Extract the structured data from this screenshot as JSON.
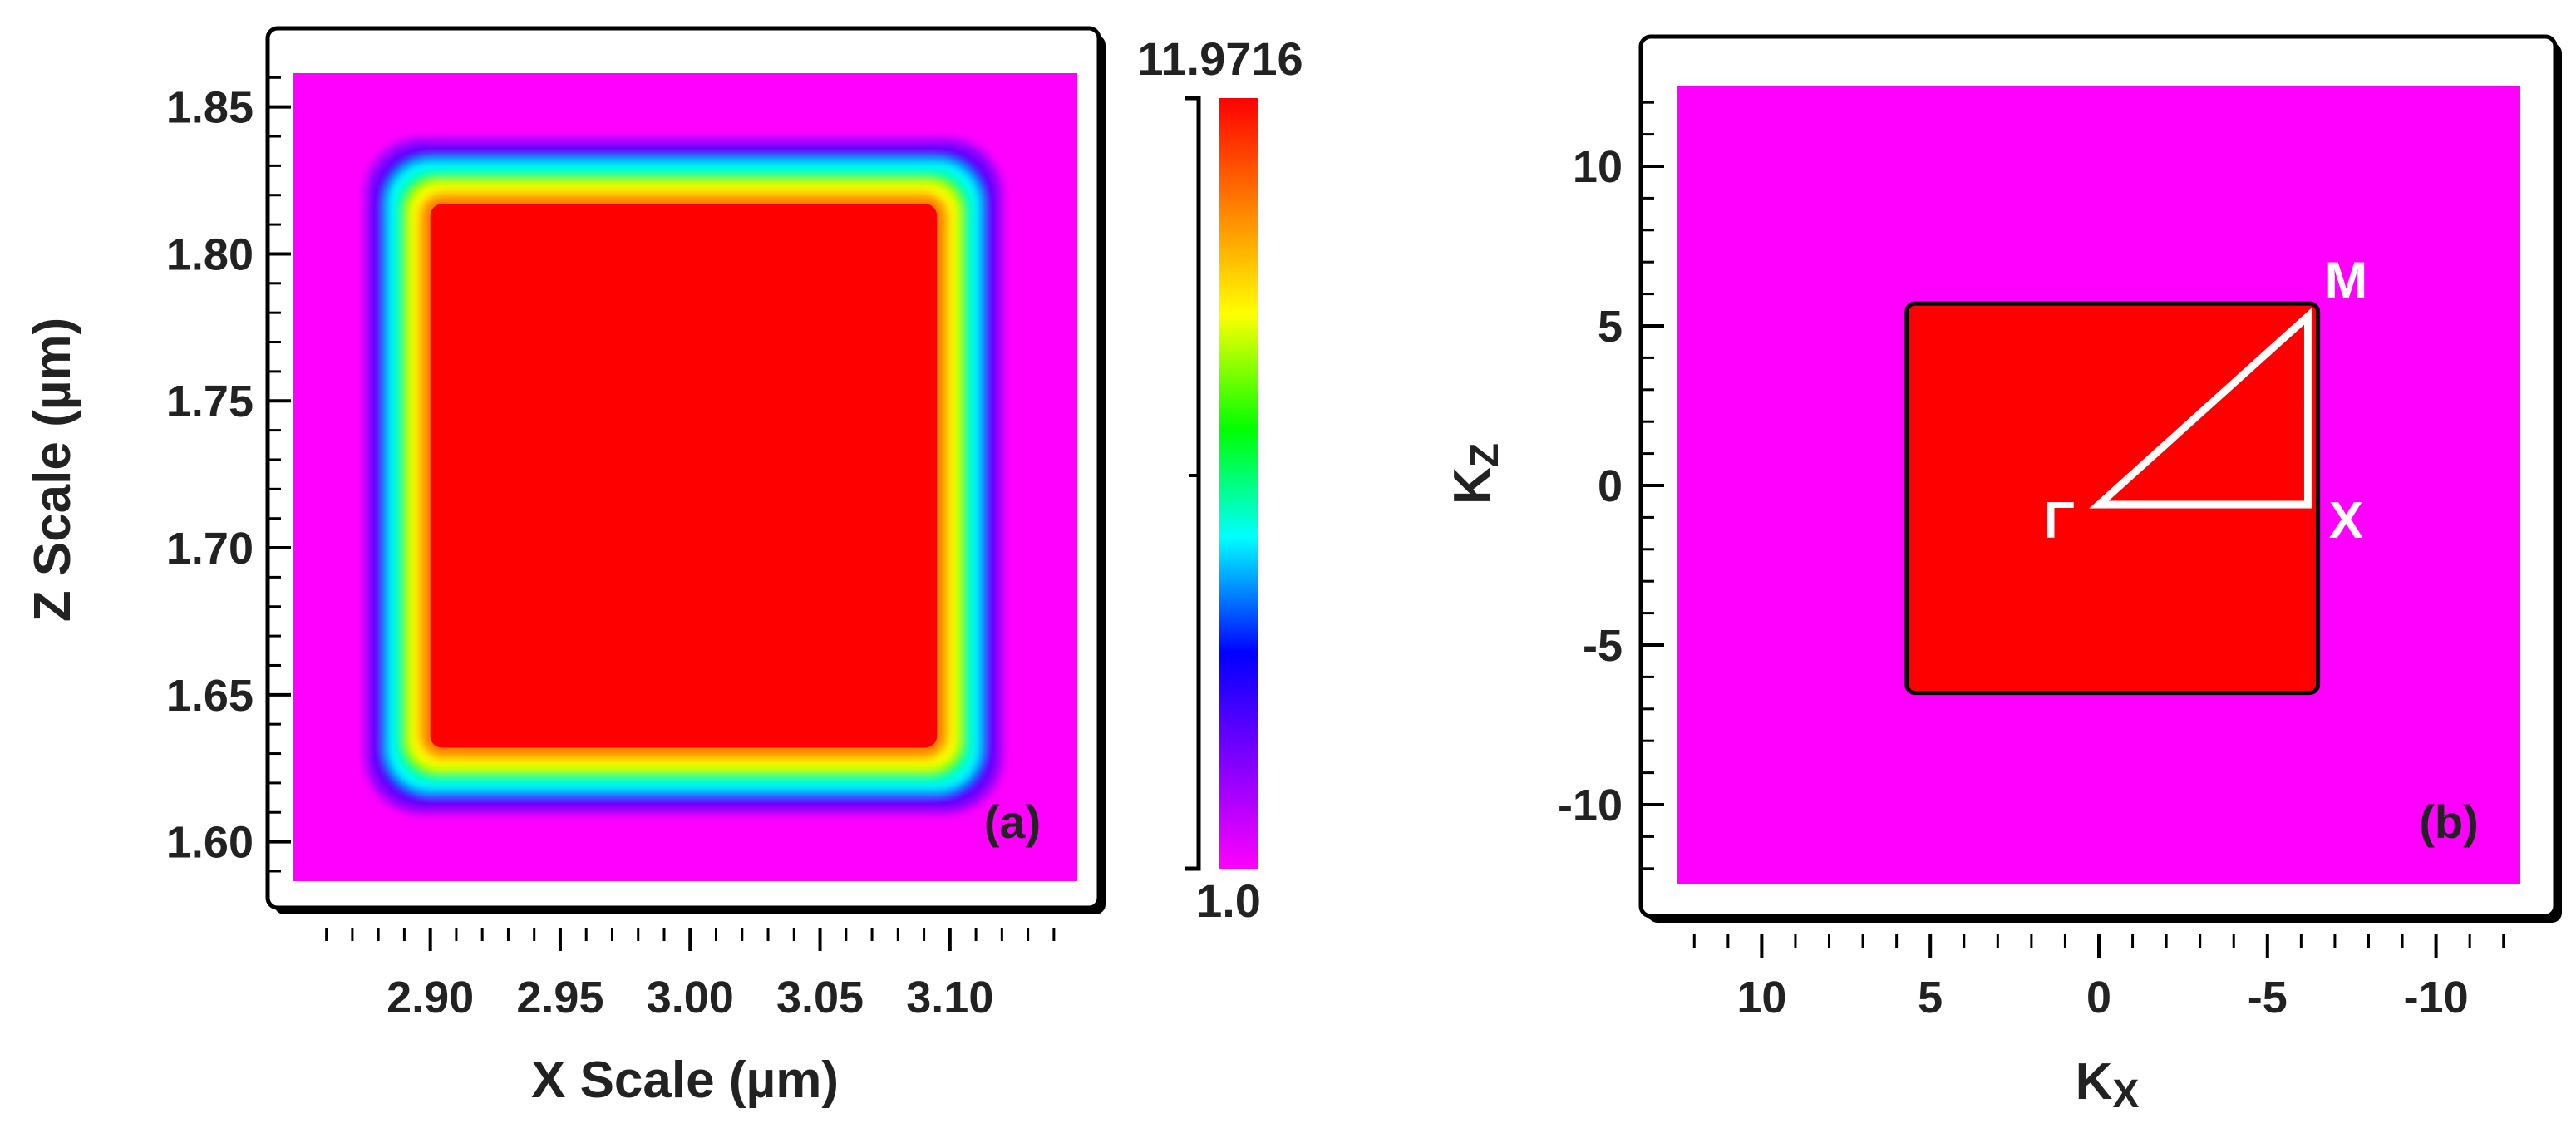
{
  "colors": {
    "colormap": [
      "#ff00ff",
      "#8000ff",
      "#0000ff",
      "#00ffff",
      "#00ff00",
      "#ffff00",
      "#ff7f00",
      "#ff0000"
    ],
    "magenta": "#ff00ff",
    "red": "#ff0000",
    "path": "#ffffff",
    "frame": "#000000"
  },
  "chart_data": [
    {
      "type": "heatmap",
      "panel_label": "(a)",
      "title": "",
      "xlabel": "X Scale (µm)",
      "ylabel": "Z Scale (µm)",
      "xlim": [
        2.847,
        3.149
      ],
      "ylim": [
        1.5866,
        1.8615
      ],
      "x_ticks": [
        2.9,
        2.95,
        3.0,
        3.05,
        3.1
      ],
      "x_tick_labels": [
        "2.90",
        "2.95",
        "3.00",
        "3.05",
        "3.10"
      ],
      "y_ticks": [
        1.6,
        1.65,
        1.7,
        1.75,
        1.8,
        1.85
      ],
      "y_tick_labels": [
        "1.60",
        "1.65",
        "1.70",
        "1.75",
        "1.80",
        "1.85"
      ],
      "background_value": 1.0,
      "rod": {
        "value": 11.9716,
        "x_range": [
          2.9,
          3.095
        ],
        "z_range": [
          1.632,
          1.817
        ]
      },
      "colorbar": {
        "min": 1.0,
        "max": 11.9716,
        "min_label": "1.0",
        "max_label": "11.9716"
      }
    },
    {
      "type": "heatmap",
      "panel_label": "(b)",
      "title": "",
      "xlabel": "K",
      "xlabel_sub": "X",
      "ylabel": "K",
      "ylabel_sub": "Z",
      "xlim": [
        12.5,
        -12.5
      ],
      "ylim": [
        -12.5,
        12.5
      ],
      "x_ticks": [
        10,
        5,
        0,
        -5,
        -10
      ],
      "x_tick_labels": [
        "10",
        "5",
        "0",
        "-5",
        "-10"
      ],
      "y_ticks": [
        -10,
        -5,
        0,
        5,
        10
      ],
      "y_tick_labels": [
        "-10",
        "-5",
        "0",
        "5",
        "10"
      ],
      "brillouin_zone": {
        "x_range": [
          5.7,
          -6.5
        ],
        "y_range": [
          -6.5,
          5.7
        ]
      },
      "symmetry_path": [
        {
          "label": "Γ",
          "x": 0.0,
          "y": -0.6
        },
        {
          "label": "X",
          "x": -6.2,
          "y": -0.6
        },
        {
          "label": "M",
          "x": -6.2,
          "y": 5.3
        }
      ]
    }
  ]
}
